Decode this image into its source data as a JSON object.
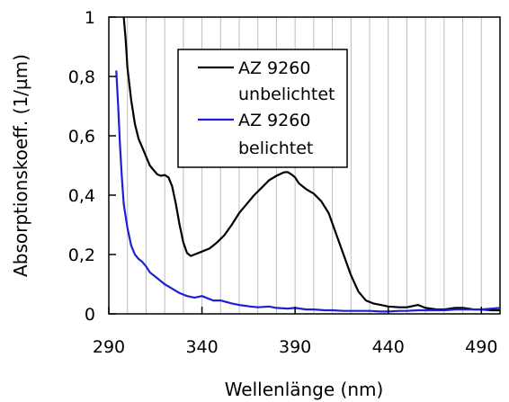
{
  "chart_data": {
    "type": "line",
    "xlabel": "Wellenlänge (nm)",
    "ylabel": "Absorptionskoeff. (1/µm)",
    "xlim": [
      290,
      500
    ],
    "ylim": [
      0,
      1
    ],
    "x_ticks": [
      "290",
      "340",
      "390",
      "440",
      "490"
    ],
    "x_tick_values": [
      290,
      340,
      390,
      440,
      490
    ],
    "y_ticks": [
      "0",
      "0,2",
      "0,4",
      "0,6",
      "0,8",
      "1"
    ],
    "y_tick_values": [
      0,
      0.2,
      0.4,
      0.6,
      0.8,
      1.0
    ],
    "grid": true,
    "legend_position": "top-center",
    "series": [
      {
        "name_lines": [
          "AZ 9260",
          "unbelichtet"
        ],
        "color": "#000000",
        "x": [
          298,
          299,
          300,
          302,
          304,
          306,
          308,
          310,
          312,
          314,
          316,
          318,
          320,
          322,
          324,
          326,
          328,
          330,
          332,
          334,
          336,
          338,
          340,
          344,
          348,
          352,
          356,
          360,
          364,
          368,
          372,
          376,
          380,
          384,
          386,
          388,
          390,
          392,
          394,
          396,
          400,
          404,
          408,
          412,
          416,
          420,
          424,
          428,
          432,
          436,
          440,
          446,
          450,
          456,
          460,
          466,
          470,
          476,
          480,
          486,
          490,
          496,
          500
        ],
        "y": [
          1.0,
          0.93,
          0.83,
          0.72,
          0.64,
          0.59,
          0.56,
          0.53,
          0.5,
          0.485,
          0.47,
          0.465,
          0.468,
          0.46,
          0.43,
          0.37,
          0.3,
          0.24,
          0.205,
          0.195,
          0.2,
          0.205,
          0.21,
          0.22,
          0.24,
          0.265,
          0.3,
          0.34,
          0.37,
          0.4,
          0.425,
          0.45,
          0.465,
          0.477,
          0.478,
          0.47,
          0.46,
          0.44,
          0.43,
          0.42,
          0.405,
          0.38,
          0.34,
          0.27,
          0.2,
          0.13,
          0.075,
          0.045,
          0.035,
          0.03,
          0.025,
          0.022,
          0.022,
          0.03,
          0.02,
          0.015,
          0.015,
          0.02,
          0.02,
          0.015,
          0.015,
          0.012,
          0.012
        ]
      },
      {
        "name_lines": [
          "AZ 9260",
          "belichtet"
        ],
        "color": "#1f1fd6",
        "x": [
          294,
          295,
          296,
          297,
          298,
          300,
          302,
          304,
          306,
          308,
          310,
          312,
          316,
          320,
          324,
          328,
          332,
          336,
          340,
          346,
          350,
          356,
          360,
          366,
          370,
          376,
          380,
          386,
          390,
          396,
          400,
          406,
          410,
          416,
          420,
          426,
          430,
          436,
          440,
          446,
          450,
          456,
          460,
          466,
          470,
          476,
          480,
          486,
          490,
          496,
          500
        ],
        "y": [
          0.82,
          0.7,
          0.57,
          0.46,
          0.37,
          0.29,
          0.23,
          0.2,
          0.185,
          0.175,
          0.16,
          0.14,
          0.12,
          0.1,
          0.085,
          0.07,
          0.06,
          0.055,
          0.06,
          0.045,
          0.045,
          0.035,
          0.03,
          0.025,
          0.022,
          0.025,
          0.02,
          0.018,
          0.02,
          0.015,
          0.015,
          0.012,
          0.012,
          0.01,
          0.01,
          0.01,
          0.01,
          0.008,
          0.008,
          0.01,
          0.01,
          0.012,
          0.012,
          0.012,
          0.012,
          0.015,
          0.015,
          0.015,
          0.015,
          0.018,
          0.02
        ]
      }
    ]
  }
}
